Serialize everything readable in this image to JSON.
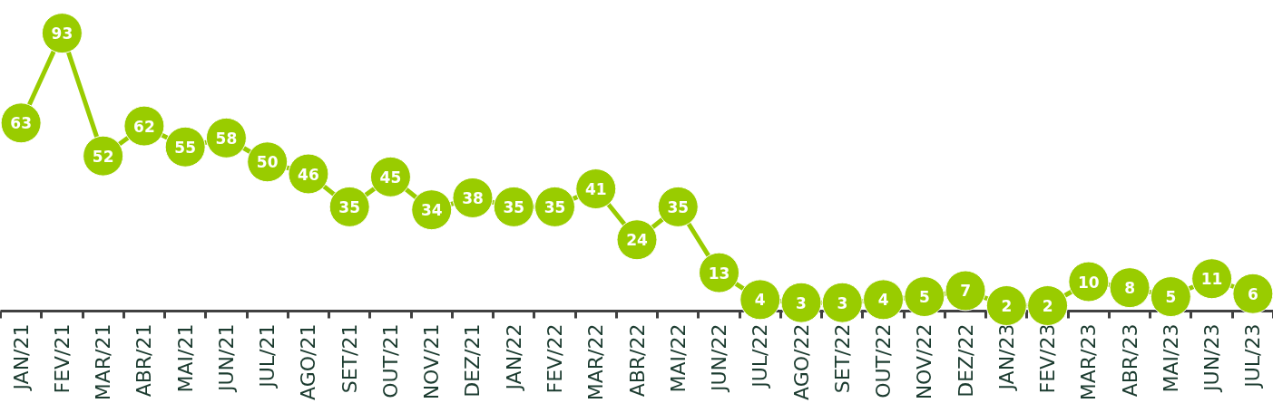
{
  "chart_data": {
    "type": "line",
    "categories": [
      "JAN/21",
      "FEV/21",
      "MAR/21",
      "ABR/21",
      "MAI/21",
      "JUN/21",
      "JUL/21",
      "AGO/21",
      "SET/21",
      "OUT/21",
      "NOV/21",
      "DEZ/21",
      "JAN/22",
      "FEV/22",
      "MAR/22",
      "ABR/22",
      "MAI/22",
      "JUN/22",
      "JUL/22",
      "AGO/22",
      "SET/22",
      "OUT/22",
      "NOV/22",
      "DEZ/22",
      "JAN/23",
      "FEV/23",
      "MAR/23",
      "ABR/23",
      "MAI/23",
      "JUN/23",
      "JUL/23"
    ],
    "series": [
      {
        "color": "#99cc00",
        "values": [
          63,
          93,
          52,
          62,
          55,
          58,
          50,
          46,
          35,
          45,
          34,
          38,
          35,
          35,
          41,
          24,
          35,
          13,
          4,
          3,
          3,
          4,
          5,
          7,
          2,
          2,
          10,
          8,
          5,
          11,
          6
        ]
      }
    ],
    "marker": "circle",
    "data_labels": true,
    "tick_labels": "x"
  }
}
